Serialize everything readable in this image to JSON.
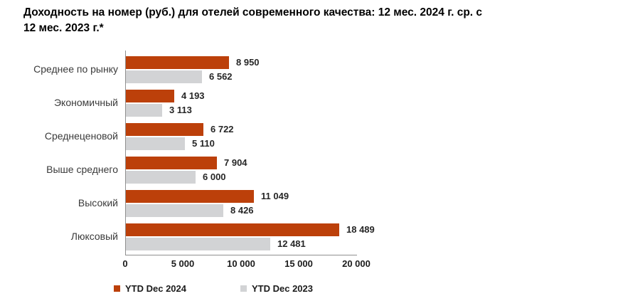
{
  "title": "Доходность на номер (руб.) для отелей современного качества: 12 мес. 2024 г. ср. с\n12 мес. 2023 г.*",
  "chart_data": {
    "type": "bar",
    "orientation": "horizontal",
    "title": "Доходность на номер (руб.) для отелей современного качества: 12 мес. 2024 г. ср. с 12 мес. 2023 г.*",
    "categories": [
      "Среднее по рынку",
      "Экономичный",
      "Среднеценовой",
      "Выше среднего",
      "Высокий",
      "Люксовый"
    ],
    "series": [
      {
        "name": "YTD Dec 2024",
        "color": "#BC400A",
        "values": [
          8950,
          4193,
          6722,
          7904,
          11049,
          18489
        ]
      },
      {
        "name": "YTD Dec 2023",
        "color": "#D2D3D5",
        "values": [
          6562,
          3113,
          5110,
          6000,
          8426,
          12481
        ]
      }
    ],
    "value_labels": [
      [
        "8 950",
        "4 193",
        "6 722",
        "7 904",
        "11 049",
        "18 489"
      ],
      [
        "6 562",
        "3 113",
        "5 110",
        "6 000",
        "8 426",
        "12 481"
      ]
    ],
    "xlabel": "",
    "ylabel": "",
    "xlim": [
      0,
      20000
    ],
    "x_ticks": [
      0,
      5000,
      10000,
      15000,
      20000
    ],
    "x_tick_labels": [
      "0",
      "5 000",
      "10 000",
      "15 000",
      "20 000"
    ],
    "grid": false,
    "legend_position": "bottom-left",
    "axis_color": "#8f8f8f",
    "number_format": "space-thousands"
  }
}
